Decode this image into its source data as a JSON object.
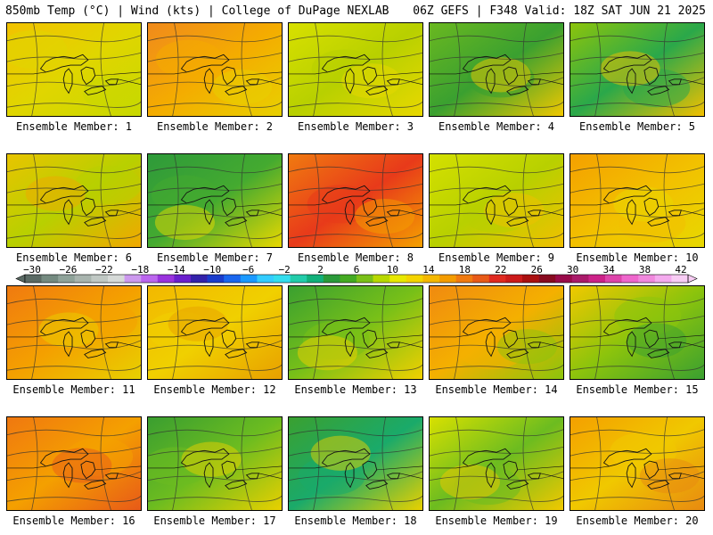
{
  "header": {
    "left": "850mb Temp (°C) | Wind (kts) | College of DuPage NEXLAB",
    "right": "06Z GEFS | F348 Valid: 18Z SAT JUN 21 2025"
  },
  "members": [
    {
      "label": "Ensemble Member: 1",
      "colors": [
        "#f2c200",
        "#e0d600",
        "#c8d800"
      ]
    },
    {
      "label": "Ensemble Member: 2",
      "colors": [
        "#f08a1c",
        "#f4ac00",
        "#e8d000"
      ]
    },
    {
      "label": "Ensemble Member: 3",
      "colors": [
        "#d8e000",
        "#b8d000",
        "#e8d800"
      ]
    },
    {
      "label": "Ensemble Member: 4",
      "colors": [
        "#6ab820",
        "#3aa030",
        "#f0c800"
      ]
    },
    {
      "label": "Ensemble Member: 5",
      "colors": [
        "#8cc40c",
        "#2aa84a",
        "#f2c000"
      ]
    },
    {
      "label": "Ensemble Member: 6",
      "colors": [
        "#e8c400",
        "#b8d000",
        "#f0a800"
      ]
    },
    {
      "label": "Ensemble Member: 7",
      "colors": [
        "#2e9a3a",
        "#44aa30",
        "#e8d800"
      ]
    },
    {
      "label": "Ensemble Member: 8",
      "colors": [
        "#f07a10",
        "#e83a1a",
        "#f4a000"
      ]
    },
    {
      "label": "Ensemble Member: 9",
      "colors": [
        "#d4e000",
        "#b8d000",
        "#f0c000"
      ]
    },
    {
      "label": "Ensemble Member: 10",
      "colors": [
        "#f4a000",
        "#f2c000",
        "#e8d800"
      ]
    },
    {
      "label": "Ensemble Member: 11",
      "colors": [
        "#f07a10",
        "#f4a000",
        "#e8d000"
      ]
    },
    {
      "label": "Ensemble Member: 12",
      "colors": [
        "#f2b800",
        "#f0d000",
        "#e8a000"
      ]
    },
    {
      "label": "Ensemble Member: 13",
      "colors": [
        "#3aa030",
        "#78c018",
        "#f0d000"
      ]
    },
    {
      "label": "Ensemble Member: 14",
      "colors": [
        "#f08a10",
        "#f4b000",
        "#8cc40c"
      ]
    },
    {
      "label": "Ensemble Member: 15",
      "colors": [
        "#f0c800",
        "#8cc40c",
        "#3aa030"
      ]
    },
    {
      "label": "Ensemble Member: 16",
      "colors": [
        "#f07810",
        "#f4a000",
        "#e85a18"
      ]
    },
    {
      "label": "Ensemble Member: 17",
      "colors": [
        "#3a9e30",
        "#6cbc20",
        "#e8d000"
      ]
    },
    {
      "label": "Ensemble Member: 18",
      "colors": [
        "#3aa030",
        "#1aaa6a",
        "#e8d000"
      ]
    },
    {
      "label": "Ensemble Member: 19",
      "colors": [
        "#d8e000",
        "#6cbc20",
        "#f0c800"
      ]
    },
    {
      "label": "Ensemble Member: 20",
      "colors": [
        "#f4a000",
        "#f0c800",
        "#e88a10"
      ]
    }
  ],
  "colorbar": {
    "labels": [
      "−30",
      "−26",
      "−22",
      "−18",
      "−14",
      "−10",
      "−6",
      "−2",
      "2",
      "6",
      "10",
      "14",
      "18",
      "22",
      "26",
      "30",
      "34",
      "38",
      "42"
    ],
    "colors": [
      "#5a6a64",
      "#748a80",
      "#8fa39a",
      "#a8b4ae",
      "#c0c8c4",
      "#d6dad8",
      "#cc99ee",
      "#bb66ee",
      "#9933dd",
      "#6a1fcc",
      "#3322aa",
      "#1a3ccc",
      "#1a66ee",
      "#1a99ff",
      "#33ccff",
      "#33ddee",
      "#22ccaa",
      "#11b07a",
      "#2a9a3a",
      "#44aa22",
      "#7ac018",
      "#b8d800",
      "#e8e800",
      "#f4d400",
      "#f4b800",
      "#f49c00",
      "#f07a10",
      "#e85a18",
      "#e02a20",
      "#cc1a1a",
      "#aa1010",
      "#880a20",
      "#990a4a",
      "#aa1a6a",
      "#cc2288",
      "#dd44aa",
      "#ee66cc",
      "#f088dd",
      "#f4aaee",
      "#f8ccf4"
    ]
  }
}
